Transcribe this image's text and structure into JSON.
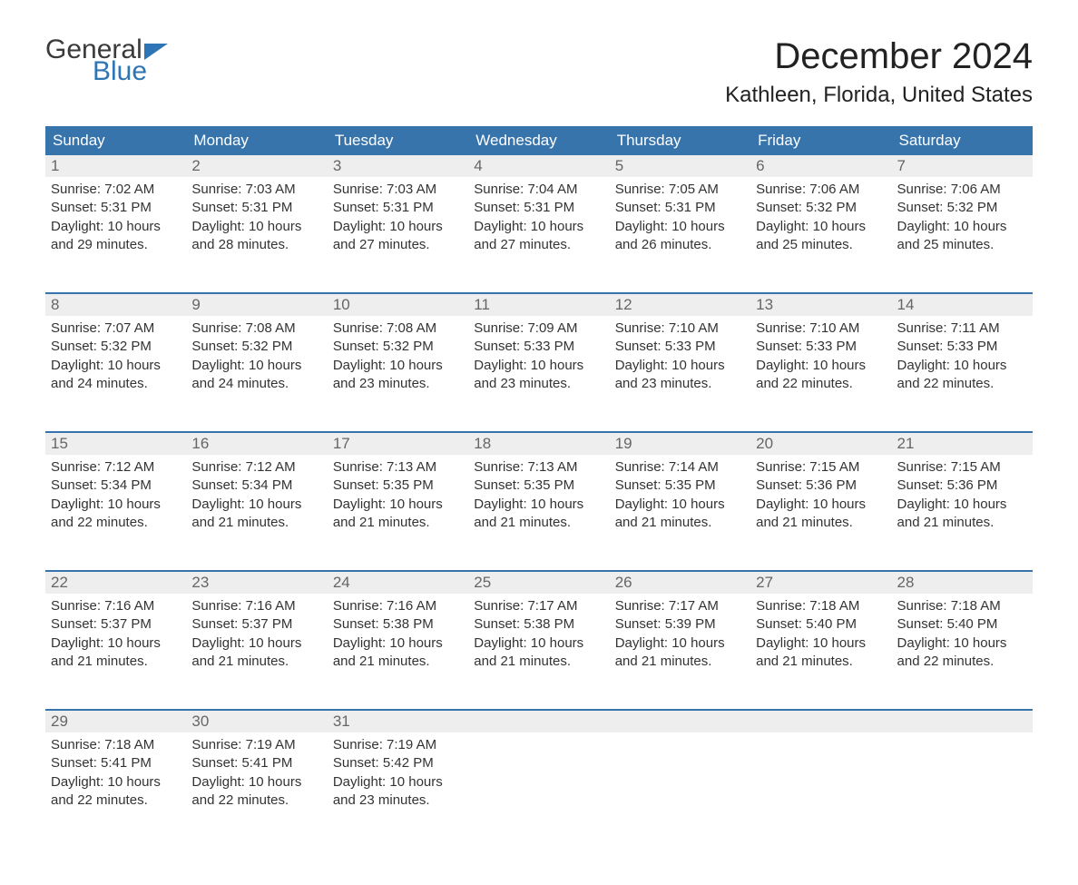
{
  "logo": {
    "text1": "General",
    "text2": "Blue",
    "flag_color": "#2e75b6"
  },
  "title": "December 2024",
  "location": "Kathleen, Florida, United States",
  "colors": {
    "header_bg": "#3874ac",
    "header_text": "#ffffff",
    "daynum_bg": "#eeeeee",
    "daynum_text": "#666666",
    "body_text": "#333333",
    "rule": "#3874ac"
  },
  "weekdays": [
    "Sunday",
    "Monday",
    "Tuesday",
    "Wednesday",
    "Thursday",
    "Friday",
    "Saturday"
  ],
  "labels": {
    "sunrise": "Sunrise: ",
    "sunset": "Sunset: ",
    "daylight": "Daylight: "
  },
  "weeks": [
    [
      {
        "n": "1",
        "sr": "7:02 AM",
        "ss": "5:31 PM",
        "dl": "10 hours and 29 minutes."
      },
      {
        "n": "2",
        "sr": "7:03 AM",
        "ss": "5:31 PM",
        "dl": "10 hours and 28 minutes."
      },
      {
        "n": "3",
        "sr": "7:03 AM",
        "ss": "5:31 PM",
        "dl": "10 hours and 27 minutes."
      },
      {
        "n": "4",
        "sr": "7:04 AM",
        "ss": "5:31 PM",
        "dl": "10 hours and 27 minutes."
      },
      {
        "n": "5",
        "sr": "7:05 AM",
        "ss": "5:31 PM",
        "dl": "10 hours and 26 minutes."
      },
      {
        "n": "6",
        "sr": "7:06 AM",
        "ss": "5:32 PM",
        "dl": "10 hours and 25 minutes."
      },
      {
        "n": "7",
        "sr": "7:06 AM",
        "ss": "5:32 PM",
        "dl": "10 hours and 25 minutes."
      }
    ],
    [
      {
        "n": "8",
        "sr": "7:07 AM",
        "ss": "5:32 PM",
        "dl": "10 hours and 24 minutes."
      },
      {
        "n": "9",
        "sr": "7:08 AM",
        "ss": "5:32 PM",
        "dl": "10 hours and 24 minutes."
      },
      {
        "n": "10",
        "sr": "7:08 AM",
        "ss": "5:32 PM",
        "dl": "10 hours and 23 minutes."
      },
      {
        "n": "11",
        "sr": "7:09 AM",
        "ss": "5:33 PM",
        "dl": "10 hours and 23 minutes."
      },
      {
        "n": "12",
        "sr": "7:10 AM",
        "ss": "5:33 PM",
        "dl": "10 hours and 23 minutes."
      },
      {
        "n": "13",
        "sr": "7:10 AM",
        "ss": "5:33 PM",
        "dl": "10 hours and 22 minutes."
      },
      {
        "n": "14",
        "sr": "7:11 AM",
        "ss": "5:33 PM",
        "dl": "10 hours and 22 minutes."
      }
    ],
    [
      {
        "n": "15",
        "sr": "7:12 AM",
        "ss": "5:34 PM",
        "dl": "10 hours and 22 minutes."
      },
      {
        "n": "16",
        "sr": "7:12 AM",
        "ss": "5:34 PM",
        "dl": "10 hours and 21 minutes."
      },
      {
        "n": "17",
        "sr": "7:13 AM",
        "ss": "5:35 PM",
        "dl": "10 hours and 21 minutes."
      },
      {
        "n": "18",
        "sr": "7:13 AM",
        "ss": "5:35 PM",
        "dl": "10 hours and 21 minutes."
      },
      {
        "n": "19",
        "sr": "7:14 AM",
        "ss": "5:35 PM",
        "dl": "10 hours and 21 minutes."
      },
      {
        "n": "20",
        "sr": "7:15 AM",
        "ss": "5:36 PM",
        "dl": "10 hours and 21 minutes."
      },
      {
        "n": "21",
        "sr": "7:15 AM",
        "ss": "5:36 PM",
        "dl": "10 hours and 21 minutes."
      }
    ],
    [
      {
        "n": "22",
        "sr": "7:16 AM",
        "ss": "5:37 PM",
        "dl": "10 hours and 21 minutes."
      },
      {
        "n": "23",
        "sr": "7:16 AM",
        "ss": "5:37 PM",
        "dl": "10 hours and 21 minutes."
      },
      {
        "n": "24",
        "sr": "7:16 AM",
        "ss": "5:38 PM",
        "dl": "10 hours and 21 minutes."
      },
      {
        "n": "25",
        "sr": "7:17 AM",
        "ss": "5:38 PM",
        "dl": "10 hours and 21 minutes."
      },
      {
        "n": "26",
        "sr": "7:17 AM",
        "ss": "5:39 PM",
        "dl": "10 hours and 21 minutes."
      },
      {
        "n": "27",
        "sr": "7:18 AM",
        "ss": "5:40 PM",
        "dl": "10 hours and 21 minutes."
      },
      {
        "n": "28",
        "sr": "7:18 AM",
        "ss": "5:40 PM",
        "dl": "10 hours and 22 minutes."
      }
    ],
    [
      {
        "n": "29",
        "sr": "7:18 AM",
        "ss": "5:41 PM",
        "dl": "10 hours and 22 minutes."
      },
      {
        "n": "30",
        "sr": "7:19 AM",
        "ss": "5:41 PM",
        "dl": "10 hours and 22 minutes."
      },
      {
        "n": "31",
        "sr": "7:19 AM",
        "ss": "5:42 PM",
        "dl": "10 hours and 23 minutes."
      },
      null,
      null,
      null,
      null
    ]
  ]
}
